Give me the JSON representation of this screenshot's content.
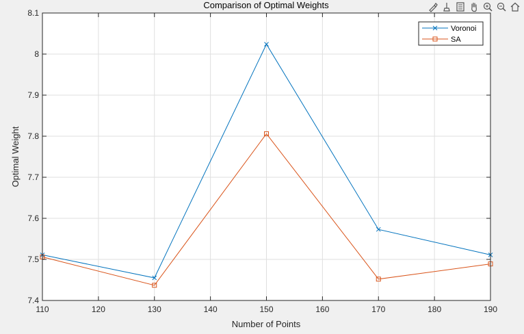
{
  "chart_data": {
    "type": "line",
    "title": "Comparison of Optimal Weights",
    "xlabel": "Number of Points",
    "ylabel": "Optimal Weight",
    "xlim": [
      110,
      190
    ],
    "ylim": [
      7.4,
      8.1
    ],
    "xticks": [
      110,
      120,
      130,
      140,
      150,
      160,
      170,
      180,
      190
    ],
    "yticks": [
      7.4,
      7.5,
      7.6,
      7.7,
      7.8,
      7.9,
      8.0,
      8.1
    ],
    "ytick_labels": [
      "7.4",
      "7.5",
      "7.6",
      "7.7",
      "7.8",
      "7.9",
      "8",
      "8.1"
    ],
    "grid": true,
    "legend_position": "top-right",
    "x": [
      110,
      130,
      150,
      170,
      190
    ],
    "series": [
      {
        "name": "Voronoi",
        "values": [
          7.511,
          7.455,
          8.024,
          7.573,
          7.511
        ],
        "color": "#0072bd",
        "marker": "x"
      },
      {
        "name": "SA",
        "values": [
          7.506,
          7.437,
          7.806,
          7.452,
          7.489
        ],
        "color": "#d95319",
        "marker": "square"
      }
    ]
  },
  "toolbar": {
    "icons": [
      "brush-icon",
      "data-tip-icon",
      "legend-toggle-icon",
      "pan-icon",
      "zoom-in-icon",
      "zoom-out-icon",
      "home-icon"
    ]
  }
}
